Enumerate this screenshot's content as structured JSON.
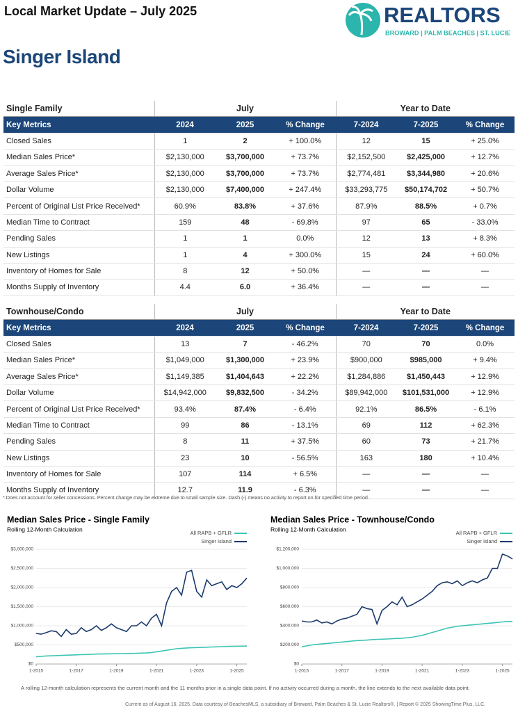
{
  "header": {
    "title": "Local Market Update – July 2025",
    "logo_name": "REALTORS",
    "logo_sub": "BROWARD | PALM BEACHES | ST. LUCIE",
    "location": "Singer Island"
  },
  "tables": [
    {
      "section": "Single Family",
      "period1": "July",
      "period2": "Year to Date",
      "columns": [
        "Key Metrics",
        "2024",
        "2025",
        "% Change",
        "7-2024",
        "7-2025",
        "% Change"
      ],
      "rows": [
        [
          "Closed Sales",
          "1",
          "2",
          "+ 100.0%",
          "12",
          "15",
          "+ 25.0%"
        ],
        [
          "Median Sales Price*",
          "$2,130,000",
          "$3,700,000",
          "+ 73.7%",
          "$2,152,500",
          "$2,425,000",
          "+ 12.7%"
        ],
        [
          "Average Sales Price*",
          "$2,130,000",
          "$3,700,000",
          "+ 73.7%",
          "$2,774,481",
          "$3,344,980",
          "+ 20.6%"
        ],
        [
          "Dollar Volume",
          "$2,130,000",
          "$7,400,000",
          "+ 247.4%",
          "$33,293,775",
          "$50,174,702",
          "+ 50.7%"
        ],
        [
          "Percent of Original List Price Received*",
          "60.9%",
          "83.8%",
          "+ 37.6%",
          "87.9%",
          "88.5%",
          "+ 0.7%"
        ],
        [
          "Median Time to Contract",
          "159",
          "48",
          "- 69.8%",
          "97",
          "65",
          "- 33.0%"
        ],
        [
          "Pending Sales",
          "1",
          "1",
          "0.0%",
          "12",
          "13",
          "+ 8.3%"
        ],
        [
          "New Listings",
          "1",
          "4",
          "+ 300.0%",
          "15",
          "24",
          "+ 60.0%"
        ],
        [
          "Inventory of Homes for Sale",
          "8",
          "12",
          "+ 50.0%",
          "—",
          "—",
          "—"
        ],
        [
          "Months Supply of Inventory",
          "4.4",
          "6.0",
          "+ 36.4%",
          "—",
          "—",
          "—"
        ]
      ]
    },
    {
      "section": "Townhouse/Condo",
      "period1": "July",
      "period2": "Year to Date",
      "columns": [
        "Key Metrics",
        "2024",
        "2025",
        "% Change",
        "7-2024",
        "7-2025",
        "% Change"
      ],
      "rows": [
        [
          "Closed Sales",
          "13",
          "7",
          "- 46.2%",
          "70",
          "70",
          "0.0%"
        ],
        [
          "Median Sales Price*",
          "$1,049,000",
          "$1,300,000",
          "+ 23.9%",
          "$900,000",
          "$985,000",
          "+ 9.4%"
        ],
        [
          "Average Sales Price*",
          "$1,149,385",
          "$1,404,643",
          "+ 22.2%",
          "$1,284,886",
          "$1,450,443",
          "+ 12.9%"
        ],
        [
          "Dollar Volume",
          "$14,942,000",
          "$9,832,500",
          "- 34.2%",
          "$89,942,000",
          "$101,531,000",
          "+ 12.9%"
        ],
        [
          "Percent of Original List Price Received*",
          "93.4%",
          "87.4%",
          "- 6.4%",
          "92.1%",
          "86.5%",
          "- 6.1%"
        ],
        [
          "Median Time to Contract",
          "99",
          "86",
          "- 13.1%",
          "69",
          "112",
          "+ 62.3%"
        ],
        [
          "Pending Sales",
          "8",
          "11",
          "+ 37.5%",
          "60",
          "73",
          "+ 21.7%"
        ],
        [
          "New Listings",
          "23",
          "10",
          "- 56.5%",
          "163",
          "180",
          "+ 10.4%"
        ],
        [
          "Inventory of Homes for Sale",
          "107",
          "114",
          "+ 6.5%",
          "—",
          "—",
          "—"
        ],
        [
          "Months Supply of Inventory",
          "12.7",
          "11.9",
          "- 6.3%",
          "—",
          "—",
          "—"
        ]
      ]
    }
  ],
  "footnote": "* Does not account for seller concessions. Percent change may be extreme due to small sample size. Dash (-) means no activity to report on for specified time period.",
  "chart_data": [
    {
      "type": "line",
      "title": "Median Sales Price - Single Family",
      "subtitle": "Rolling 12-Month Calculation",
      "x": [
        "1-2015",
        null,
        null,
        null,
        null,
        null,
        null,
        null,
        "1-2017",
        null,
        null,
        null,
        null,
        null,
        null,
        null,
        "1-2019",
        null,
        null,
        null,
        null,
        null,
        null,
        null,
        "1-2021",
        null,
        null,
        null,
        null,
        null,
        null,
        null,
        "1-2023",
        null,
        null,
        null,
        null,
        null,
        null,
        null,
        "1-2025",
        null,
        null
      ],
      "ylim": [
        0,
        3000000
      ],
      "yticks": [
        {
          "value": 0,
          "label": "$0"
        },
        {
          "value": 500000,
          "label": "$500,000"
        },
        {
          "value": 1000000,
          "label": "$1,000,000"
        },
        {
          "value": 1500000,
          "label": "$1,500,000"
        },
        {
          "value": 2000000,
          "label": "$2,000,000"
        },
        {
          "value": 2500000,
          "label": "$2,500,000"
        },
        {
          "value": 3000000,
          "label": "$3,000,000"
        }
      ],
      "grid": true,
      "series": [
        {
          "name": "All RAPB + GFLR",
          "color": "#3cc4b4",
          "values": [
            190000,
            200000,
            210000,
            215000,
            220000,
            225000,
            230000,
            235000,
            240000,
            245000,
            250000,
            255000,
            260000,
            262000,
            265000,
            268000,
            270000,
            272000,
            275000,
            278000,
            280000,
            285000,
            290000,
            300000,
            320000,
            340000,
            360000,
            380000,
            400000,
            410000,
            420000,
            425000,
            430000,
            435000,
            440000,
            445000,
            450000,
            455000,
            460000,
            462000,
            465000,
            468000,
            470000
          ]
        },
        {
          "name": "Singer Island",
          "color": "#1b3a6b",
          "values": [
            800000,
            780000,
            820000,
            870000,
            850000,
            720000,
            900000,
            780000,
            800000,
            950000,
            850000,
            900000,
            1000000,
            880000,
            950000,
            1050000,
            950000,
            900000,
            850000,
            1000000,
            1000000,
            1100000,
            1000000,
            1200000,
            1300000,
            1000000,
            1600000,
            1900000,
            2000000,
            1800000,
            2400000,
            2450000,
            1900000,
            1750000,
            2200000,
            2050000,
            2100000,
            2150000,
            1950000,
            2050000,
            2000000,
            2100000,
            2250000
          ]
        }
      ]
    },
    {
      "type": "line",
      "title": "Median Sales Price - Townhouse/Condo",
      "subtitle": "Rolling 12-Month Calculation",
      "x": [
        "1-2015",
        null,
        null,
        null,
        null,
        null,
        null,
        null,
        "1-2017",
        null,
        null,
        null,
        null,
        null,
        null,
        null,
        "1-2019",
        null,
        null,
        null,
        null,
        null,
        null,
        null,
        "1-2021",
        null,
        null,
        null,
        null,
        null,
        null,
        null,
        "1-2023",
        null,
        null,
        null,
        null,
        null,
        null,
        null,
        "1-2025",
        null,
        null
      ],
      "ylim": [
        0,
        1200000
      ],
      "yticks": [
        {
          "value": 0,
          "label": "$0"
        },
        {
          "value": 200000,
          "label": "$200,000"
        },
        {
          "value": 400000,
          "label": "$400,000"
        },
        {
          "value": 600000,
          "label": "$600,000"
        },
        {
          "value": 800000,
          "label": "$800,000"
        },
        {
          "value": 1000000,
          "label": "$1,000,000"
        },
        {
          "value": 1200000,
          "label": "$1,200,000"
        }
      ],
      "grid": true,
      "series": [
        {
          "name": "All RAPB + GFLR",
          "color": "#3cc4b4",
          "values": [
            180000,
            190000,
            200000,
            205000,
            210000,
            215000,
            220000,
            225000,
            230000,
            235000,
            240000,
            245000,
            248000,
            250000,
            255000,
            258000,
            260000,
            262000,
            265000,
            268000,
            270000,
            275000,
            280000,
            290000,
            300000,
            315000,
            330000,
            345000,
            360000,
            375000,
            385000,
            395000,
            400000,
            405000,
            410000,
            415000,
            420000,
            425000,
            430000,
            435000,
            440000,
            445000,
            445000
          ]
        },
        {
          "name": "Singer Island",
          "color": "#1b3a6b",
          "values": [
            450000,
            440000,
            440000,
            460000,
            430000,
            440000,
            420000,
            450000,
            470000,
            480000,
            500000,
            520000,
            600000,
            580000,
            570000,
            420000,
            560000,
            600000,
            650000,
            620000,
            700000,
            600000,
            620000,
            650000,
            680000,
            720000,
            760000,
            820000,
            850000,
            860000,
            840000,
            870000,
            820000,
            850000,
            870000,
            850000,
            880000,
            900000,
            1000000,
            1000000,
            1150000,
            1130000,
            1100000
          ]
        }
      ]
    }
  ],
  "chart_note": "A rolling 12-month calculation represents the current month and the 11 months prior in a single data point. If no activity occurred during a month, the line extends to the next available data point.",
  "footer": "Current as of August 16, 2025. Data courtesy of BeachesMLS, a subsidiary of Broward, Palm Beaches & St. Lucie Realtors®. | Report © 2025 ShowingTime Plus, LLC."
}
